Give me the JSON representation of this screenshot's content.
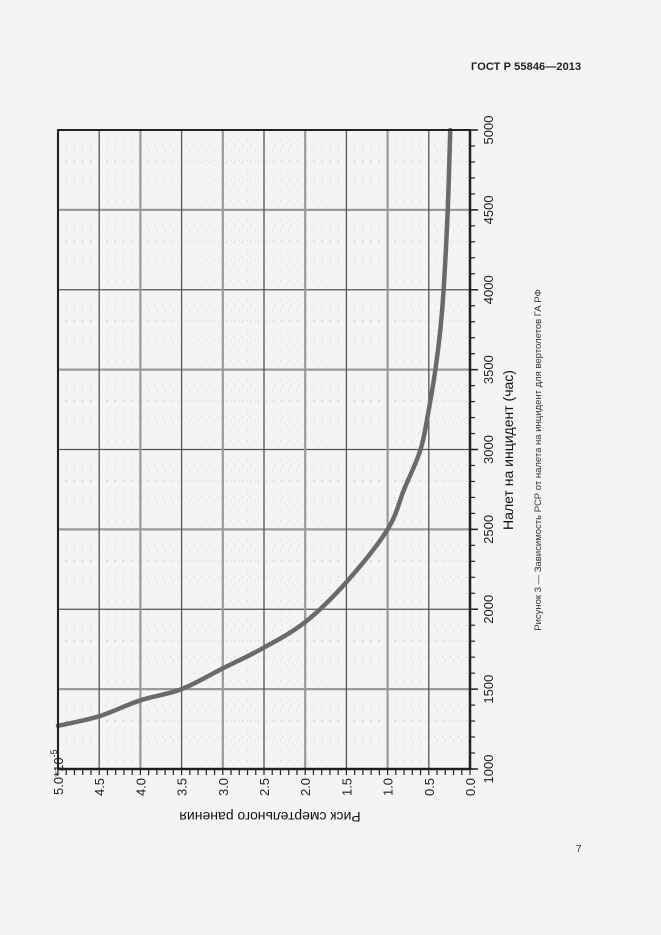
{
  "document": {
    "header": "ГОСТ Р 55846—2013",
    "page_number": "7"
  },
  "figure": {
    "caption": "Рисунок 3 — Зависимость РСР от налета на инцидент для вертолетов ГА РФ"
  },
  "chart_data": {
    "type": "line",
    "title": "",
    "xlabel": "Налет на инцидент (час)",
    "ylabel": "Риск смертельного ранения",
    "y_multiplier_label": "*10",
    "y_multiplier_exp": "-5",
    "xlim": [
      1000,
      5000
    ],
    "ylim": [
      0.0,
      5.0
    ],
    "x_ticks": [
      "1000",
      "1500",
      "2000",
      "2500",
      "3000",
      "3500",
      "4000",
      "4500",
      "5000"
    ],
    "y_ticks": [
      "0.0",
      "0.5",
      "1.0",
      "1.5",
      "2.0",
      "2.5",
      "3.0",
      "3.5",
      "4.0",
      "4.5",
      "5.0"
    ],
    "grid": true,
    "legend": "none",
    "orientation": "rotated 90° clockwise on page",
    "series": [
      {
        "name": "РСР",
        "color": "#6a6a6a",
        "x": [
          1270,
          1330,
          1430,
          1500,
          1630,
          1760,
          1920,
          2170,
          2500,
          2750,
          3000,
          3250,
          3500,
          3750,
          4000,
          4500,
          5000
        ],
        "y": [
          5.0,
          4.5,
          4.0,
          3.5,
          3.0,
          2.5,
          2.0,
          1.5,
          1.0,
          0.8,
          0.6,
          0.5,
          0.42,
          0.36,
          0.32,
          0.27,
          0.24
        ]
      }
    ]
  },
  "colors": {
    "page_bg": "#f4f4f4",
    "frame": "#222222",
    "grid_major": "#9a9a9a",
    "grid_dark": "#555555",
    "curve": "#6a6a6a"
  }
}
